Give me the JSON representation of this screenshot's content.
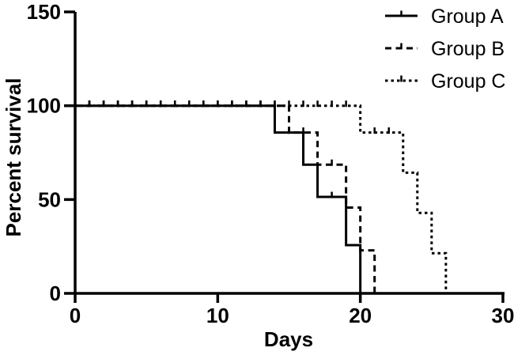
{
  "figure": {
    "background": "#ffffff",
    "ink": "#000000"
  },
  "chart_data": {
    "type": "line",
    "subtype": "kaplan-meier-survival-step",
    "title": "",
    "xlabel": "Days",
    "ylabel": "Percent survival",
    "xlim": [
      0,
      30
    ],
    "ylim": [
      0,
      150
    ],
    "x_ticks": [
      0,
      10,
      20,
      30
    ],
    "y_ticks": [
      0,
      50,
      100,
      150
    ],
    "grid": false,
    "legend_position": "top-right",
    "series": [
      {
        "name": "Group A",
        "line_style": "solid",
        "steps": [
          [
            0,
            100
          ],
          [
            14,
            100
          ],
          [
            14,
            85.7
          ],
          [
            16,
            85.7
          ],
          [
            16,
            68.6
          ],
          [
            17,
            68.6
          ],
          [
            17,
            51.4
          ],
          [
            19,
            51.4
          ],
          [
            19,
            25.7
          ],
          [
            20,
            25.7
          ],
          [
            20,
            0
          ]
        ],
        "drop_days": [
          14,
          16,
          17,
          19,
          20
        ],
        "end_day": 20
      },
      {
        "name": "Group B",
        "line_style": "dashed",
        "steps": [
          [
            0,
            100
          ],
          [
            15,
            100
          ],
          [
            15,
            85.7
          ],
          [
            17,
            85.7
          ],
          [
            17,
            68.6
          ],
          [
            19,
            68.6
          ],
          [
            19,
            45.7
          ],
          [
            20,
            45.7
          ],
          [
            20,
            22.9
          ],
          [
            21,
            22.9
          ],
          [
            21,
            0
          ]
        ],
        "drop_days": [
          15,
          17,
          19,
          20,
          21
        ],
        "end_day": 21
      },
      {
        "name": "Group C",
        "line_style": "dotted",
        "steps": [
          [
            0,
            100
          ],
          [
            20,
            100
          ],
          [
            20,
            85.7
          ],
          [
            23,
            85.7
          ],
          [
            23,
            64.3
          ],
          [
            24,
            64.3
          ],
          [
            24,
            42.9
          ],
          [
            25,
            42.9
          ],
          [
            25,
            21.4
          ],
          [
            26,
            21.4
          ],
          [
            26,
            0
          ]
        ],
        "drop_days": [
          20,
          23,
          24,
          25,
          26
        ],
        "end_day": 26
      }
    ]
  }
}
